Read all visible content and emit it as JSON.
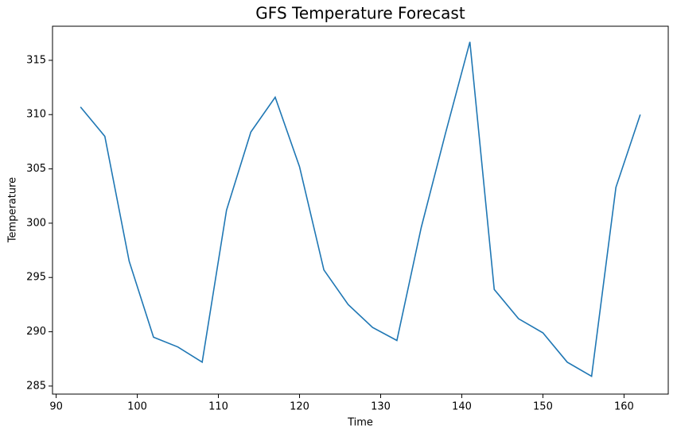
{
  "chart_data": {
    "type": "line",
    "title": "GFS Temperature Forecast",
    "x_label": "Time",
    "y_label": "Temperature",
    "x": [
      93,
      96,
      99,
      102,
      105,
      108,
      111,
      114,
      117,
      120,
      123,
      126,
      129,
      132,
      135,
      138,
      141,
      144,
      147,
      150,
      153,
      156,
      159,
      162
    ],
    "series": [
      {
        "name": "Temperature",
        "color": "#1f77b4",
        "values": [
          310.7,
          308.0,
          296.5,
          289.5,
          288.6,
          287.2,
          301.2,
          308.4,
          311.6,
          305.2,
          295.7,
          292.5,
          290.4,
          289.2,
          299.6,
          308.3,
          316.7,
          293.9,
          291.2,
          289.9,
          287.2,
          285.9,
          303.3,
          310.0
        ]
      }
    ],
    "xlim": [
      89.55,
      165.45
    ],
    "xticks": [
      90,
      100,
      110,
      120,
      130,
      140,
      150,
      160
    ],
    "ylim": [
      284.26,
      318.14
    ],
    "yticks": [
      285,
      290,
      295,
      300,
      305,
      310,
      315
    ],
    "grid": false
  }
}
